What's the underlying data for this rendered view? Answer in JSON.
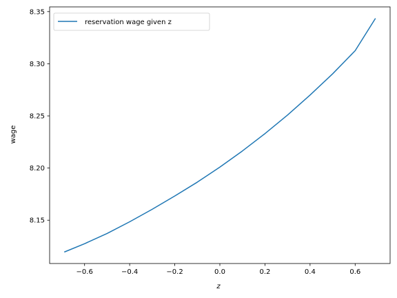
{
  "chart_data": {
    "type": "line",
    "xlabel": "z",
    "ylabel": "wage",
    "xlim": [
      -0.755,
      0.755
    ],
    "ylim": [
      8.1085,
      8.3545
    ],
    "xticks": [
      -0.6,
      -0.4,
      -0.2,
      0.0,
      0.2,
      0.4,
      0.6
    ],
    "xtick_labels": [
      "−0.6",
      "−0.4",
      "−0.2",
      "0.0",
      "0.2",
      "0.4",
      "0.6"
    ],
    "yticks": [
      8.15,
      8.2,
      8.25,
      8.3,
      8.35
    ],
    "ytick_labels": [
      "8.15",
      "8.20",
      "8.25",
      "8.30",
      "8.35"
    ],
    "grid": false,
    "legend_position": "top-left",
    "series": [
      {
        "name": "reservation wage given z",
        "color": "#1f77b4",
        "x": [
          -0.69,
          -0.6,
          -0.5,
          -0.4,
          -0.3,
          -0.2,
          -0.1,
          0.0,
          0.1,
          0.2,
          0.3,
          0.4,
          0.5,
          0.6,
          0.69
        ],
        "y": [
          8.1195,
          8.1275,
          8.1373,
          8.1485,
          8.1605,
          8.1732,
          8.1865,
          8.2009,
          8.2164,
          8.233,
          8.2508,
          8.27,
          8.2903,
          8.3125,
          8.3435
        ]
      }
    ]
  }
}
